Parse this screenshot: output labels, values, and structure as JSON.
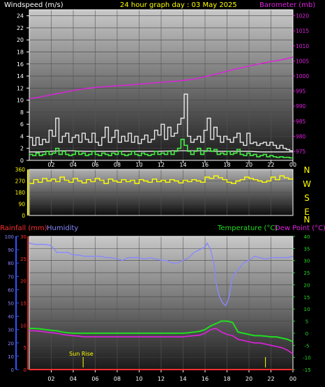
{
  "header": {
    "title_left": "Windspeed (m/s)",
    "title_center": "24 hour graph day : 03 May 2025",
    "title_right": "Barometer (mb)"
  },
  "colors": {
    "background": "#000000",
    "title": "#ffff00",
    "windspeed": "#ffffff",
    "wind_title": "#ffffff",
    "gust": "#e8e8e8",
    "avg_wind": "#ffffff",
    "wind_green": "#44ee44",
    "barometer": "#e020e0",
    "direction": "#ffff00",
    "rainfall": "#ff3030",
    "humidity": "#8888ff",
    "temperature": "#22dd22",
    "dewpoint": "#e020e0",
    "sunrise": "#ffff00",
    "axis_blue": "#3355ff"
  },
  "x_labels": [
    "02",
    "04",
    "06",
    "08",
    "10",
    "12",
    "14",
    "16",
    "18",
    "20",
    "22",
    "00"
  ],
  "panel1": {
    "left_ticks": [
      "0",
      "2",
      "4",
      "6",
      "8",
      "10",
      "12",
      "14",
      "16",
      "18",
      "20",
      "22",
      "24"
    ],
    "right_ticks": [
      "975",
      "980",
      "985",
      "990",
      "995",
      "1000",
      "1005",
      "1010",
      "1015",
      "1020"
    ]
  },
  "panel2": {
    "left_ticks": [
      "0",
      "90",
      "180",
      "270",
      "360"
    ],
    "compass": [
      "N",
      "W",
      "S",
      "E",
      "N"
    ]
  },
  "panel3": {
    "label_rain": "Rainfall (mm)",
    "label_humidity": "Humidity",
    "label_temperature": "Temperature (°C)",
    "label_dewpoint": "Dew Point (°C)",
    "humidity_ticks": [
      "0",
      "10",
      "20",
      "30",
      "40",
      "50",
      "60",
      "70",
      "80",
      "90",
      "100"
    ],
    "rain_ticks": [
      "0",
      "5",
      "10",
      "15",
      "20",
      "25",
      "30"
    ],
    "temp_ticks": [
      "-15",
      "-10",
      "-5",
      "0",
      "5",
      "10",
      "15",
      "20",
      "25",
      "30",
      "35",
      "40"
    ],
    "sunrise_label": "Sun Rise"
  },
  "chart_data": [
    {
      "type": "line",
      "title": "24 hour graph day : 03 May 2025",
      "ylabel": "Windspeed (m/s)",
      "ylabel_right": "Barometer (mb)",
      "x_range_hours": [
        0,
        24
      ],
      "ylim": [
        0,
        25
      ],
      "ylim_right": [
        972,
        1022
      ],
      "series": [
        {
          "name": "",
          "x": [
            0,
            0.3,
            0.6,
            0.9,
            1.2,
            1.5,
            1.8,
            2.1,
            2.4,
            2.7,
            3.0,
            3.3,
            3.6,
            3.9,
            4.2,
            4.5,
            4.8,
            5.1,
            5.4,
            5.7,
            6.0,
            6.3,
            6.6,
            6.9,
            7.2,
            7.5,
            7.8,
            8.1,
            8.4,
            8.7,
            9.0,
            9.3,
            9.6,
            9.9,
            10.2,
            10.5,
            10.8,
            11.1,
            11.4,
            11.7,
            12.0,
            12.3,
            12.6,
            12.9,
            13.2,
            13.5,
            13.8,
            14.1,
            14.4,
            14.7,
            15.0,
            15.3,
            15.6,
            15.9,
            16.2,
            16.5,
            16.8,
            17.1,
            17.4,
            17.7,
            18.0,
            18.3,
            18.6,
            18.9,
            19.2,
            19.5,
            19.8,
            20.1,
            20.4,
            20.7,
            21.0,
            21.3,
            21.6,
            21.9,
            22.2,
            22.5,
            22.8,
            23.1,
            23.4,
            23.7,
            24.0
          ],
          "values": [
            3.8,
            2.5,
            3.8,
            2.6,
            3.5,
            3.0,
            5.0,
            4.0,
            7.0,
            3.0,
            4.0,
            4.5,
            3.0,
            3.8,
            4.2,
            3.0,
            4.5,
            3.5,
            3.0,
            4.5,
            3.0,
            2.5,
            3.8,
            5.5,
            3.0,
            3.8,
            5.0,
            3.0,
            4.0,
            3.2,
            4.5,
            3.0,
            4.0,
            2.8,
            3.5,
            4.2,
            3.0,
            3.5,
            5.0,
            4.2,
            6.0,
            3.5,
            5.5,
            4.0,
            4.5,
            6.0,
            7.0,
            11.0,
            4.0,
            3.0,
            3.5,
            4.0,
            3.0,
            5.0,
            7.0,
            3.5,
            5.5,
            4.0,
            3.0,
            4.0,
            3.5,
            3.0,
            3.8,
            4.5,
            3.0,
            2.5,
            4.5,
            2.8,
            3.0,
            2.5,
            2.8,
            3.0,
            2.5,
            3.0,
            2.5,
            2.0,
            2.5,
            2.0,
            1.8,
            1.6,
            1.6
          ]
        },
        {
          "name": "",
          "x": [
            0,
            0.3,
            0.6,
            0.9,
            1.2,
            1.5,
            1.8,
            2.1,
            2.4,
            2.7,
            3.0,
            3.3,
            3.6,
            3.9,
            4.2,
            4.5,
            4.8,
            5.1,
            5.4,
            5.7,
            6.0,
            6.3,
            6.6,
            6.9,
            7.2,
            7.5,
            7.8,
            8.1,
            8.4,
            8.7,
            9.0,
            9.3,
            9.6,
            9.9,
            10.2,
            10.5,
            10.8,
            11.1,
            11.4,
            11.7,
            12.0,
            12.3,
            12.6,
            12.9,
            13.2,
            13.5,
            13.8,
            14.1,
            14.4,
            14.7,
            15.0,
            15.3,
            15.6,
            15.9,
            16.2,
            16.5,
            16.8,
            17.1,
            17.4,
            17.7,
            18.0,
            18.3,
            18.6,
            18.9,
            19.2,
            19.5,
            19.8,
            20.1,
            20.4,
            20.7,
            21.0,
            21.3,
            21.6,
            21.9,
            22.2,
            22.5,
            22.8,
            23.1,
            23.4,
            23.7,
            24.0
          ],
          "values": [
            1.0,
            0.8,
            1.2,
            0.8,
            1.0,
            1.5,
            1.0,
            1.2,
            2.0,
            1.0,
            1.5,
            1.0,
            0.8,
            1.0,
            1.5,
            1.0,
            1.2,
            0.8,
            1.0,
            1.5,
            1.0,
            0.8,
            1.2,
            1.0,
            0.8,
            1.2,
            1.0,
            1.5,
            1.0,
            0.8,
            1.0,
            1.5,
            1.0,
            0.8,
            1.2,
            1.0,
            0.8,
            1.0,
            1.5,
            1.0,
            1.2,
            1.0,
            1.5,
            1.0,
            1.5,
            2.0,
            3.5,
            2.5,
            1.5,
            1.0,
            1.5,
            2.0,
            1.0,
            1.5,
            2.0,
            1.5,
            1.8,
            1.0,
            1.2,
            1.0,
            1.5,
            1.0,
            1.2,
            1.8,
            1.0,
            0.8,
            1.2,
            0.8,
            1.0,
            0.6,
            0.8,
            1.0,
            0.6,
            0.8,
            0.6,
            0.5,
            0.6,
            0.5,
            0.5,
            0.4,
            0.5
          ]
        },
        {
          "name": "",
          "x": [
            0,
            1,
            2,
            3,
            4,
            5,
            6,
            7,
            8,
            9,
            10,
            11,
            12,
            13,
            14,
            15,
            16,
            17,
            18,
            19,
            20,
            21,
            22,
            23,
            24
          ],
          "values": [
            1.4,
            1.4,
            1.5,
            1.6,
            1.6,
            1.5,
            1.5,
            1.5,
            1.5,
            1.5,
            1.5,
            1.5,
            1.5,
            1.6,
            1.6,
            1.6,
            1.6,
            1.5,
            1.5,
            1.5,
            1.5,
            1.4,
            1.4,
            1.4,
            1.4
          ]
        },
        {
          "name": "",
          "axis": "right",
          "x": [
            0,
            1,
            2,
            3,
            4,
            5,
            6,
            7,
            8,
            9,
            10,
            11,
            12,
            13,
            14,
            15,
            16,
            17,
            18,
            19,
            20,
            21,
            22,
            23,
            24
          ],
          "values": [
            992.5,
            993.0,
            993.8,
            994.5,
            995.2,
            995.8,
            996.2,
            996.5,
            996.8,
            997.0,
            997.3,
            997.6,
            997.9,
            998.2,
            998.5,
            999.0,
            999.8,
            1000.6,
            1001.6,
            1002.5,
            1003.3,
            1004.1,
            1004.8,
            1005.4,
            1006.3
          ]
        }
      ]
    },
    {
      "type": "line",
      "ylim": [
        0,
        360
      ],
      "x_range_hours": [
        0,
        24
      ],
      "series": [
        {
          "name": "",
          "x": [
            0,
            0.4,
            0.8,
            1.2,
            1.6,
            2.0,
            2.4,
            2.8,
            3.2,
            3.6,
            4.0,
            4.4,
            4.8,
            5.2,
            5.6,
            6.0,
            6.4,
            6.8,
            7.2,
            7.6,
            8.0,
            8.4,
            8.8,
            9.2,
            9.6,
            10.0,
            10.4,
            10.8,
            11.2,
            11.6,
            12.0,
            12.4,
            12.8,
            13.2,
            13.6,
            14.0,
            14.4,
            14.8,
            15.2,
            15.6,
            16.0,
            16.4,
            16.8,
            17.2,
            17.6,
            18.0,
            18.4,
            18.8,
            19.2,
            19.6,
            20.0,
            20.4,
            20.8,
            21.2,
            21.6,
            22.0,
            22.4,
            22.8,
            23.2,
            23.6,
            24.0
          ],
          "values": [
            250,
            280,
            260,
            290,
            270,
            285,
            265,
            300,
            275,
            260,
            290,
            270,
            255,
            280,
            265,
            290,
            275,
            250,
            285,
            270,
            260,
            280,
            265,
            275,
            250,
            280,
            270,
            260,
            285,
            265,
            275,
            260,
            280,
            270,
            255,
            275,
            265,
            280,
            270,
            260,
            300,
            290,
            310,
            295,
            280,
            260,
            250,
            270,
            280,
            300,
            290,
            280,
            270,
            260,
            270,
            300,
            280,
            310,
            295,
            285,
            290
          ]
        }
      ]
    },
    {
      "type": "line",
      "ylabel": "Rainfall (mm)",
      "ylabel_right": "Temperature (°C)",
      "x_range_hours": [
        0,
        24
      ],
      "ylim_humidity": [
        0,
        100
      ],
      "ylim_rain": [
        0,
        30
      ],
      "ylim_temp": [
        -15,
        40
      ],
      "series": [
        {
          "name": "Humidity",
          "axis": "humidity",
          "x": [
            0,
            0.5,
            1,
            1.5,
            2,
            2.5,
            3,
            3.5,
            4,
            4.5,
            5,
            5.5,
            6,
            6.5,
            7,
            7.5,
            8,
            8.5,
            9,
            9.5,
            10,
            10.5,
            11,
            11.5,
            12,
            12.5,
            13,
            13.5,
            14,
            14.5,
            15,
            15.5,
            16,
            16.2,
            16.5,
            16.8,
            17.0,
            17.3,
            17.6,
            17.9,
            18.2,
            18.5,
            19,
            19.5,
            20,
            20.5,
            21,
            21.5,
            22,
            22.5,
            23,
            23.5,
            24
          ],
          "values": [
            95,
            94,
            94,
            94,
            93,
            88,
            88,
            88,
            86,
            86,
            85,
            85,
            85,
            85,
            84,
            84,
            83,
            82,
            84,
            84,
            84,
            83,
            84,
            83,
            82,
            82,
            80,
            80,
            82,
            84,
            88,
            90,
            92,
            95,
            90,
            80,
            65,
            55,
            50,
            48,
            55,
            70,
            75,
            80,
            82,
            85,
            84,
            83,
            84,
            84,
            84,
            84,
            85
          ]
        },
        {
          "name": "Rainfall (mm)",
          "axis": "rain",
          "x": [
            0,
            24
          ],
          "values": [
            0,
            0
          ]
        },
        {
          "name": "Temperature (°C)",
          "axis": "temp",
          "x": [
            0,
            0.5,
            1,
            1.5,
            2,
            2.5,
            3,
            3.5,
            4,
            4.5,
            5,
            5.5,
            6,
            6.5,
            7,
            7.5,
            8,
            8.5,
            9,
            9.5,
            10,
            10.5,
            11,
            11.5,
            12,
            12.5,
            13,
            13.5,
            14,
            14.5,
            15,
            15.5,
            16,
            16.5,
            17,
            17.5,
            18,
            18.5,
            19,
            19.5,
            20,
            20.5,
            21,
            21.5,
            22,
            22.5,
            23,
            23.5,
            24
          ],
          "values": [
            2,
            2,
            1.8,
            1.5,
            1.2,
            1,
            0.5,
            0.2,
            0,
            0,
            0,
            0,
            0,
            0,
            0,
            0,
            0,
            0,
            0,
            0,
            0,
            0,
            0,
            0,
            0,
            0,
            0,
            0,
            0,
            0.2,
            0.5,
            0.8,
            1.5,
            3,
            4,
            5,
            5,
            4.5,
            0.5,
            0,
            -0.5,
            -1,
            -1,
            -1.2,
            -1.5,
            -1.5,
            -2,
            -2.5,
            -3.5
          ]
        },
        {
          "name": "Dew Point (°C)",
          "axis": "temp",
          "x": [
            0,
            0.5,
            1,
            1.5,
            2,
            2.5,
            3,
            3.5,
            4,
            4.5,
            5,
            5.5,
            6,
            6.5,
            7,
            7.5,
            8,
            8.5,
            9,
            9.5,
            10,
            10.5,
            11,
            11.5,
            12,
            12.5,
            13,
            13.5,
            14,
            14.5,
            15,
            15.5,
            16,
            16.5,
            17,
            17.5,
            18,
            18.5,
            19,
            19.5,
            20,
            20.5,
            21,
            21.5,
            22,
            22.5,
            23,
            23.5,
            24
          ],
          "values": [
            1,
            1,
            0.8,
            0.5,
            0.2,
            0,
            -0.5,
            -0.8,
            -1,
            -1.2,
            -1.5,
            -1.5,
            -1.5,
            -1.5,
            -1.5,
            -1.5,
            -1.5,
            -1.5,
            -1.5,
            -1.5,
            -1.5,
            -1.5,
            -1.5,
            -1.5,
            -1.5,
            -1.5,
            -1.5,
            -1.5,
            -1.5,
            -1.2,
            -1,
            -0.8,
            0,
            1.5,
            2,
            0.5,
            -0.5,
            -1,
            -2.5,
            -3,
            -3.5,
            -4,
            -4,
            -4.5,
            -5,
            -5.5,
            -6,
            -7,
            -8.5
          ]
        }
      ],
      "annotations": [
        {
          "text": "Sun Rise",
          "x_hour": 4.9
        },
        {
          "text": "",
          "x_hour": 21.5
        }
      ]
    }
  ]
}
